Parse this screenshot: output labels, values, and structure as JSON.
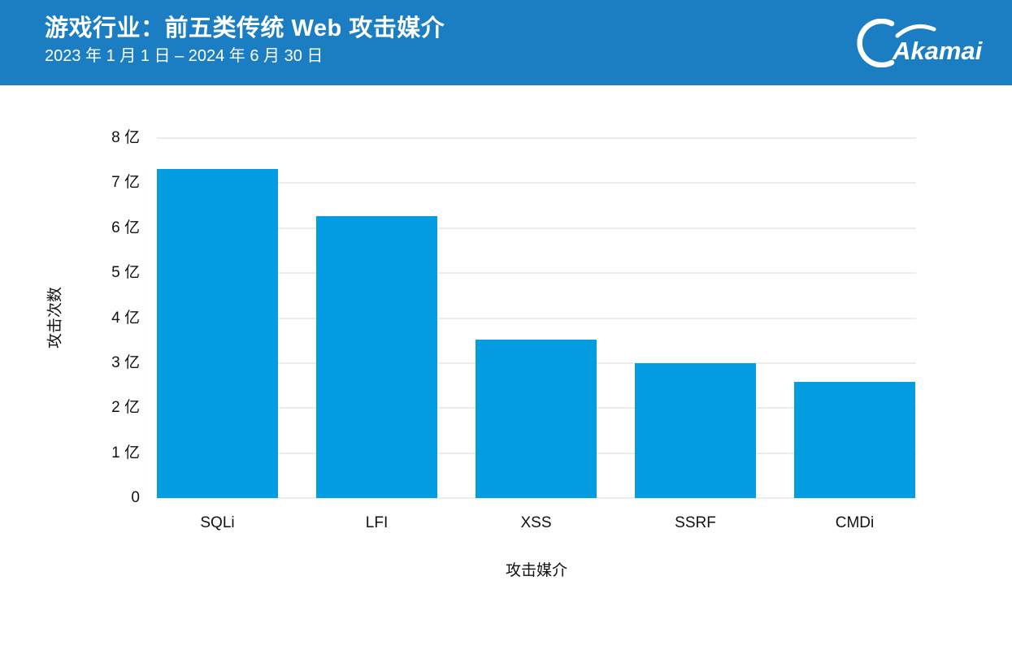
{
  "header": {
    "title": "游戏行业：前五类传统 Web 攻击媒介",
    "date_range": "2023 年 1 月 1 日 – 2024 年 6 月 30 日",
    "logo_text": "Akamai",
    "background_color": "#1b7ec2",
    "text_color": "#ffffff"
  },
  "chart_data": {
    "type": "bar",
    "title": "游戏行业：前五类传统 Web 攻击媒介",
    "subtitle": "2023 年 1 月 1 日 – 2024 年 6 月 30 日",
    "categories": [
      "SQLi",
      "LFI",
      "XSS",
      "SSRF",
      "CMDi"
    ],
    "values": [
      7.31,
      6.26,
      3.52,
      2.99,
      2.59
    ],
    "unit": "亿",
    "xlabel": "攻击媒介",
    "ylabel": "攻击次数",
    "ylim": [
      0,
      8
    ],
    "ytick_step": 1,
    "ytick_labels": [
      "0",
      "1 亿",
      "2 亿",
      "3 亿",
      "4 亿",
      "5 亿",
      "6 亿",
      "7 亿",
      "8 亿"
    ],
    "grid": true,
    "legend": false,
    "bar_color": "#049de1",
    "gridline_color": "#d9d9d9",
    "text_color": "#111111",
    "background_color": "#ffffff"
  }
}
